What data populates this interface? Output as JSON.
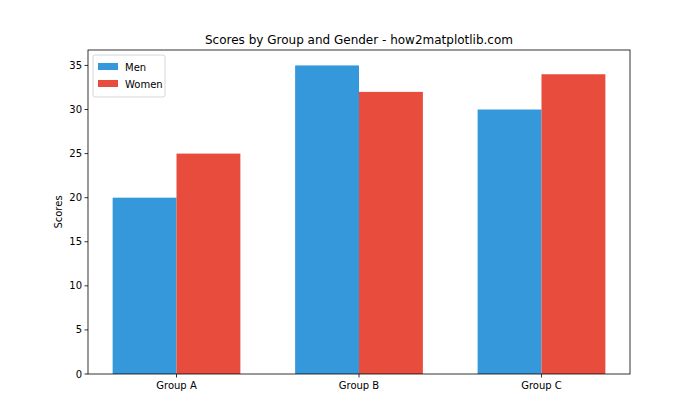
{
  "chart_data": {
    "type": "bar",
    "title": "Scores by Group and Gender - how2matplotlib.com",
    "y_label": "Scores",
    "categories": [
      "Group A",
      "Group B",
      "Group C"
    ],
    "series": [
      {
        "name": "Men",
        "color": "#3498db",
        "values": [
          20,
          35,
          30
        ]
      },
      {
        "name": "Women",
        "color": "#e74c3c",
        "values": [
          25,
          32,
          34
        ]
      }
    ],
    "ylim": [
      0,
      36.75
    ],
    "yticks": [
      0,
      5,
      10,
      15,
      20,
      25,
      30,
      35
    ],
    "legend": "upper left",
    "grid": false
  }
}
